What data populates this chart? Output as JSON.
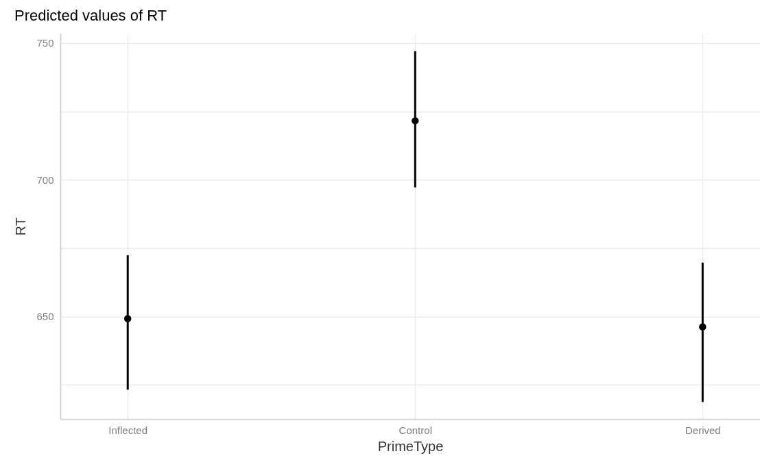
{
  "chart_data": {
    "type": "scatter",
    "title": "Predicted values of RT",
    "xlabel": "PrimeType",
    "ylabel": "RT",
    "categories": [
      "Inflected",
      "Control",
      "Derived"
    ],
    "values": [
      649.2,
      721.6,
      646.2
    ],
    "errors": [
      [
        623.2,
        672.4
      ],
      [
        697.2,
        747.1
      ],
      [
        618.7,
        669.7
      ]
    ],
    "color": "#000000",
    "marker": "circle",
    "grid": true,
    "ylim": [
      612.5,
      753.5
    ],
    "yticks": [
      {
        "value": 625,
        "label": null
      },
      650,
      {
        "value": 675,
        "label": null
      },
      700,
      {
        "value": 725,
        "label": null
      },
      750
    ]
  }
}
